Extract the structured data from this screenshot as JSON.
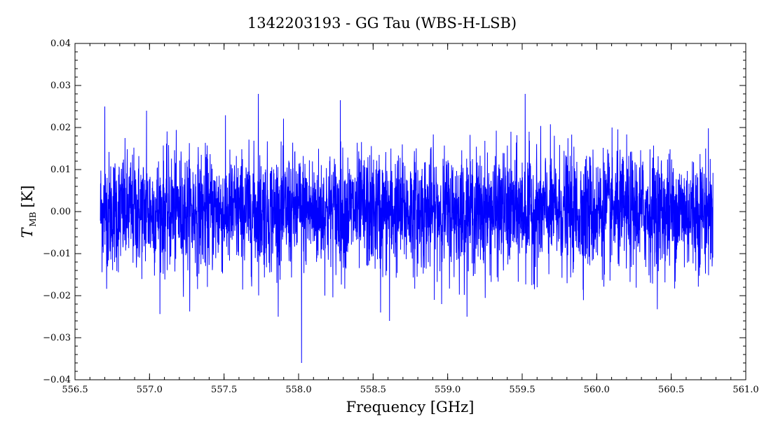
{
  "chart_data": {
    "type": "line",
    "title": "1342203193 - GG Tau (WBS-H-LSB)",
    "xlabel": "Frequency [GHz]",
    "ylabel_main": "T",
    "ylabel_sub": "MB",
    "ylabel_unit": "[K]",
    "xlim": [
      556.5,
      561.0
    ],
    "ylim": [
      -0.04,
      0.04
    ],
    "x_ticks": [
      556.5,
      557.0,
      557.5,
      558.0,
      558.5,
      559.0,
      559.5,
      560.0,
      560.5,
      561.0
    ],
    "x_tick_labels": [
      "556.5",
      "557.0",
      "557.5",
      "558.0",
      "558.5",
      "559.0",
      "559.5",
      "560.0",
      "560.5",
      "561.0"
    ],
    "y_ticks": [
      -0.04,
      -0.03,
      -0.02,
      -0.01,
      0.0,
      0.01,
      0.02,
      0.03,
      0.04
    ],
    "y_tick_labels": [
      "−0.04",
      "−0.03",
      "−0.02",
      "−0.01",
      "0.00",
      "0.01",
      "0.02",
      "0.03",
      "0.04"
    ],
    "grid": false,
    "series": [
      {
        "color": "#0000ff",
        "x_start": 556.67,
        "x_end": 560.78,
        "noise_rms": 0.007,
        "notable_points": [
          {
            "x": 558.02,
            "y": -0.036
          },
          {
            "x": 557.73,
            "y": 0.028
          },
          {
            "x": 559.52,
            "y": 0.028
          },
          {
            "x": 558.28,
            "y": 0.0265
          },
          {
            "x": 558.61,
            "y": -0.026
          },
          {
            "x": 558.55,
            "y": -0.024
          },
          {
            "x": 556.7,
            "y": 0.025
          },
          {
            "x": 556.98,
            "y": 0.024
          }
        ]
      }
    ]
  },
  "colors": {
    "series": "#0000ff",
    "axes": "#000000",
    "background": "#ffffff"
  }
}
